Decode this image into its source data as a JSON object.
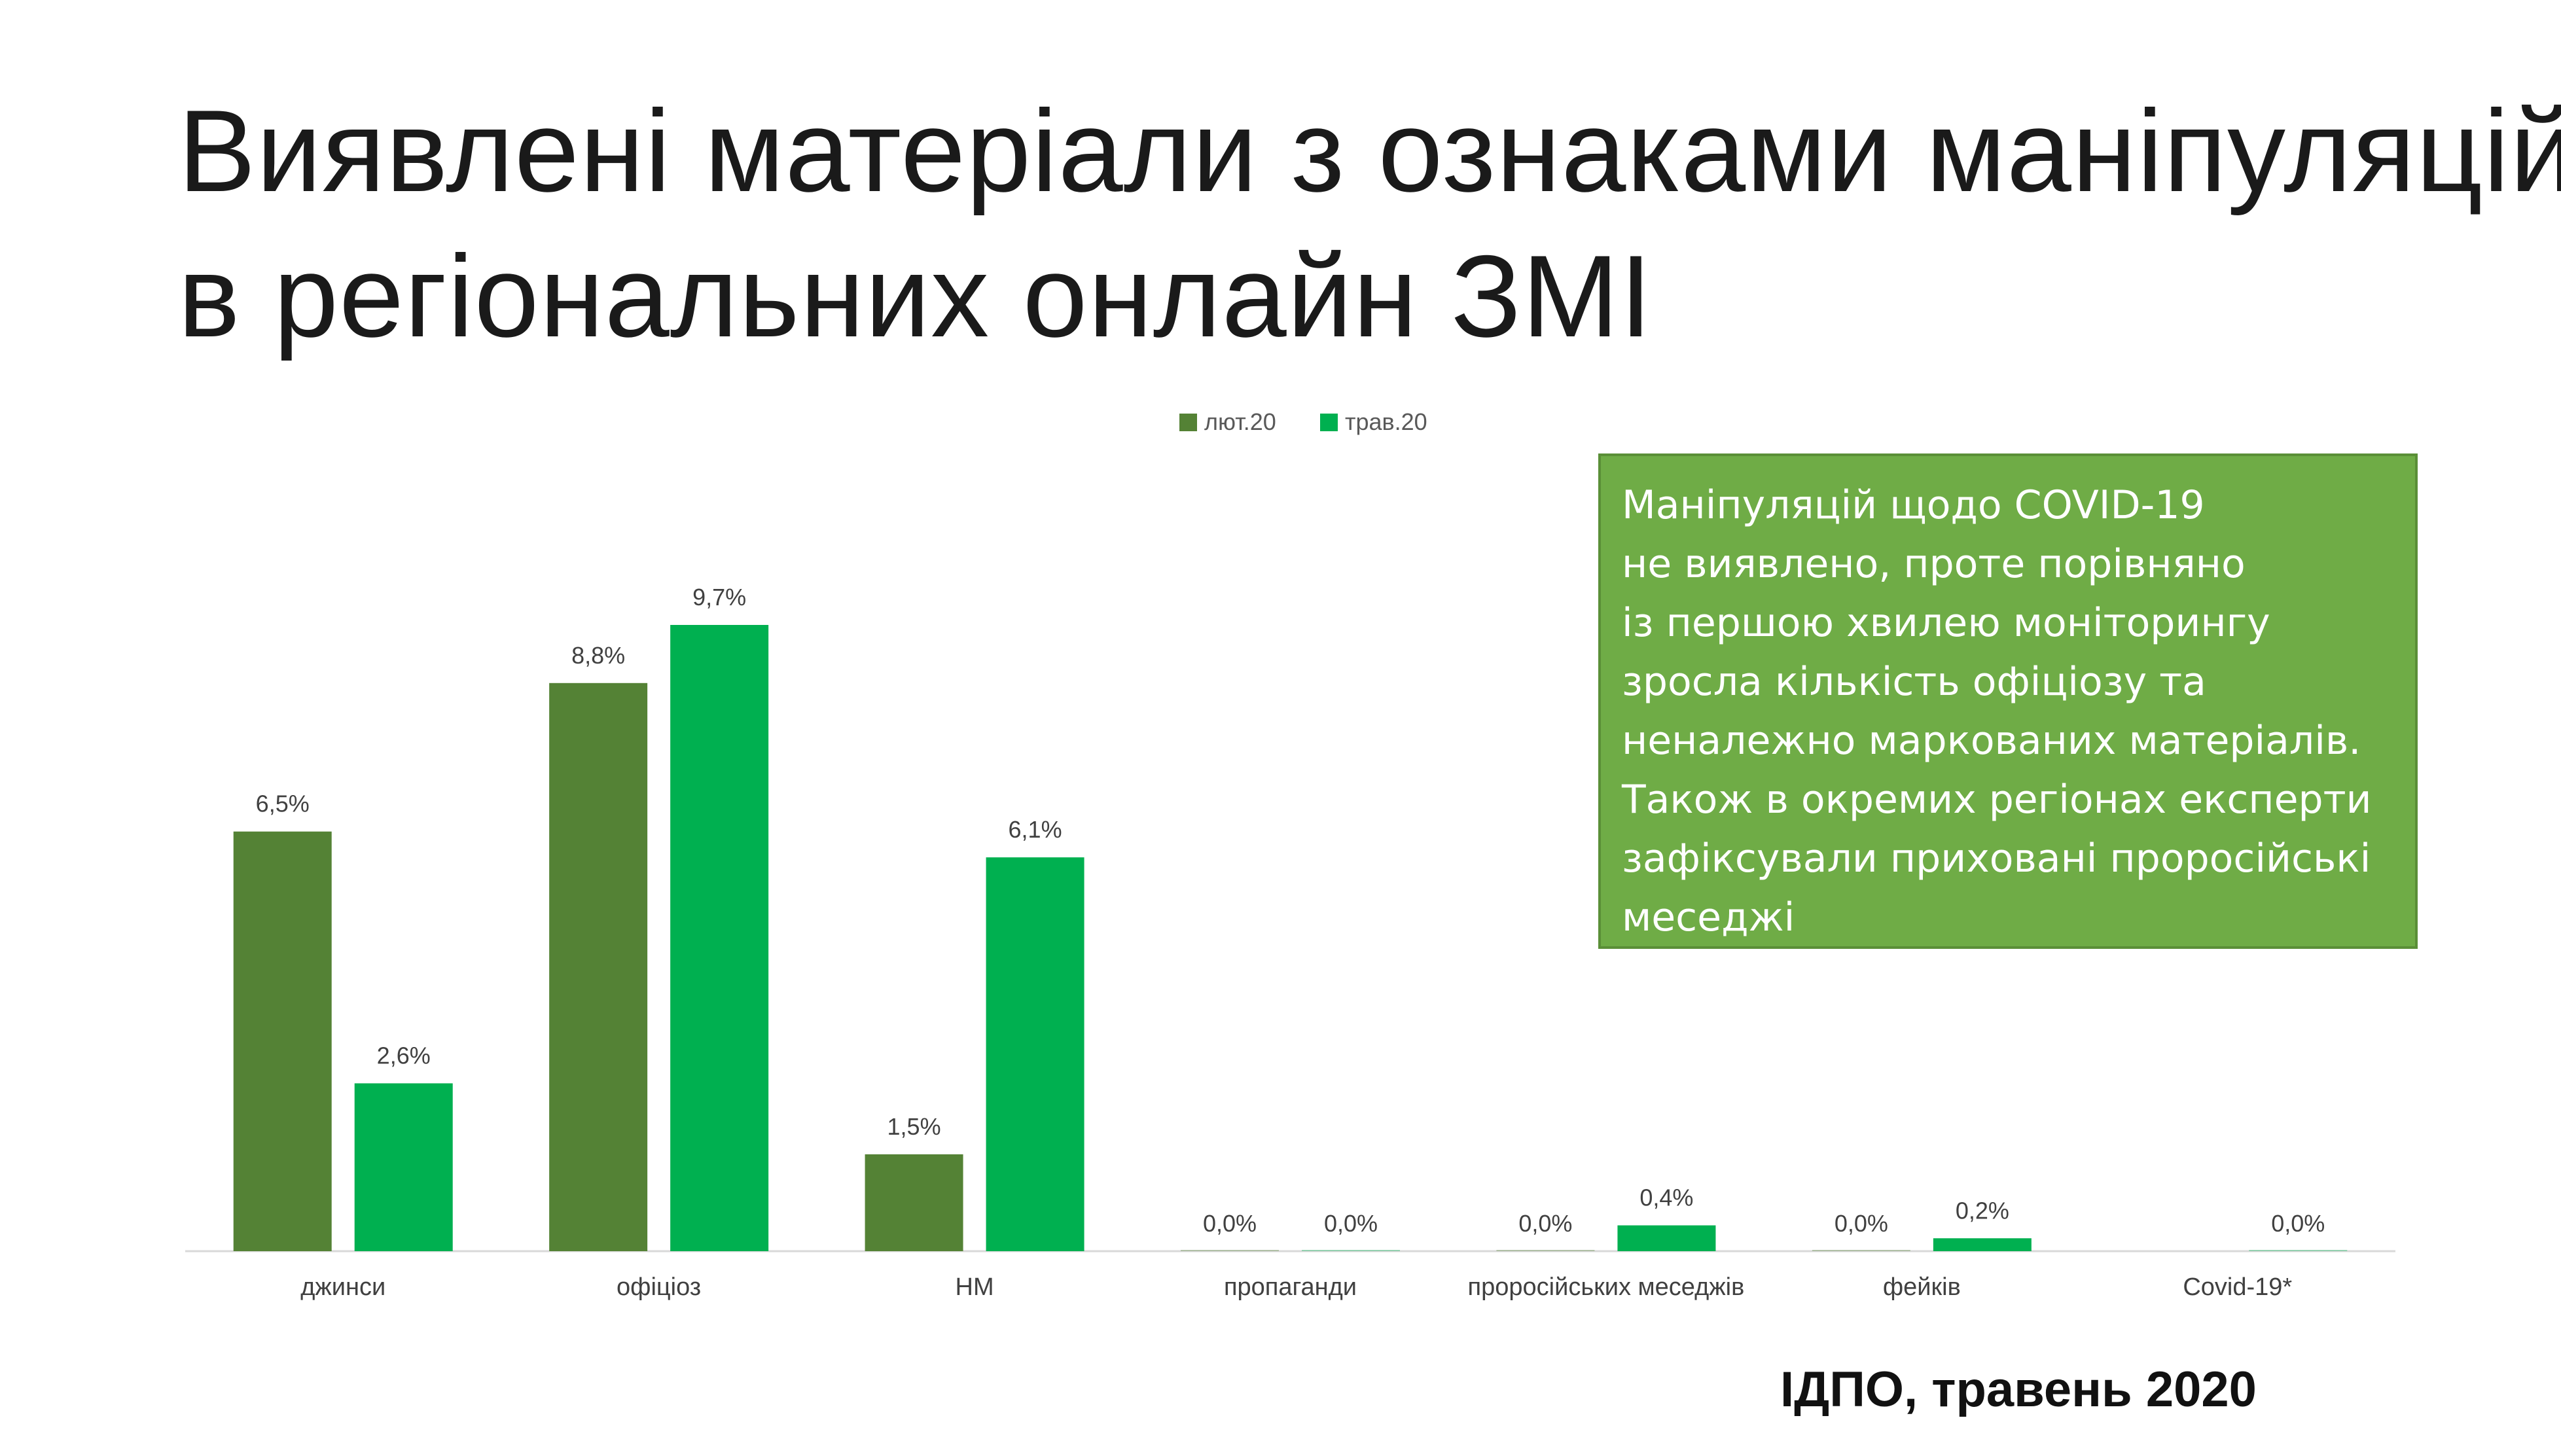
{
  "title": {
    "line1": "Виявлені матеріали з ознаками маніпуляцій",
    "line2": "в регіональних онлайн ЗМІ"
  },
  "callout": {
    "lines": [
      "Маніпуляцій щодо COVID-19",
      "не виявлено, проте порівняно",
      "із першою хвилею моніторингу",
      "зросла кількість офіціозу та",
      "неналежно маркованих матеріалів.",
      "Також в окремих регіонах експерти",
      "зафіксували приховані проросійські",
      "меседжі"
    ]
  },
  "source": "ІДПО, травень 2020",
  "colors": {
    "series1": "#548235",
    "series2": "#00b050",
    "callout_bg": "#6fac46"
  },
  "chart_data": {
    "type": "bar",
    "categories": [
      "джинси",
      "офіціоз",
      "НМ",
      "пропаганди",
      "проросійських меседжів",
      "фейків",
      "Covid-19*"
    ],
    "series": [
      {
        "name": "лют.20",
        "values": [
          6.5,
          8.8,
          1.5,
          0.0,
          0.0,
          0.0,
          null
        ],
        "labels": [
          "6,5%",
          "8,8%",
          "1,5%",
          "0,0%",
          "0,0%",
          "0,0%",
          null
        ]
      },
      {
        "name": "трав.20",
        "values": [
          2.6,
          9.7,
          6.1,
          0.0,
          0.4,
          0.2,
          0.0
        ],
        "labels": [
          "2,6%",
          "9,7%",
          "6,1%",
          "0,0%",
          "0,4%",
          "0,2%",
          "0,0%"
        ]
      }
    ],
    "ylim": [
      0,
      9.7
    ],
    "legend": "top-center",
    "grid": false
  }
}
